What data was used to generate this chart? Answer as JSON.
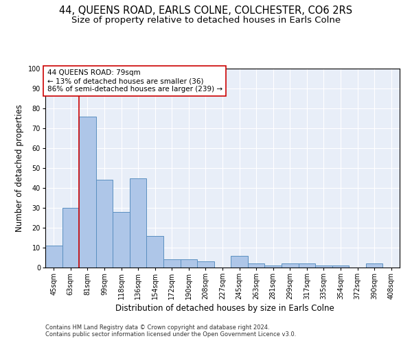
{
  "title1": "44, QUEENS ROAD, EARLS COLNE, COLCHESTER, CO6 2RS",
  "title2": "Size of property relative to detached houses in Earls Colne",
  "xlabel": "Distribution of detached houses by size in Earls Colne",
  "ylabel": "Number of detached properties",
  "categories": [
    "45sqm",
    "63sqm",
    "81sqm",
    "99sqm",
    "118sqm",
    "136sqm",
    "154sqm",
    "172sqm",
    "190sqm",
    "208sqm",
    "227sqm",
    "245sqm",
    "263sqm",
    "281sqm",
    "299sqm",
    "317sqm",
    "335sqm",
    "354sqm",
    "372sqm",
    "390sqm",
    "408sqm"
  ],
  "values": [
    11,
    30,
    76,
    44,
    28,
    45,
    16,
    4,
    4,
    3,
    0,
    6,
    2,
    1,
    2,
    2,
    1,
    1,
    0,
    2,
    0
  ],
  "bar_color": "#aec6e8",
  "bar_edge_color": "#5a8fc0",
  "vline_x": 1.5,
  "vline_color": "#cc0000",
  "annotation_text": "44 QUEENS ROAD: 79sqm\n← 13% of detached houses are smaller (36)\n86% of semi-detached houses are larger (239) →",
  "annotation_box_color": "#ffffff",
  "annotation_box_edge": "#cc0000",
  "ylim": [
    0,
    100
  ],
  "yticks": [
    0,
    10,
    20,
    30,
    40,
    50,
    60,
    70,
    80,
    90,
    100
  ],
  "bg_color": "#e8eef8",
  "footer1": "Contains HM Land Registry data © Crown copyright and database right 2024.",
  "footer2": "Contains public sector information licensed under the Open Government Licence v3.0.",
  "title1_fontsize": 10.5,
  "title2_fontsize": 9.5,
  "tick_fontsize": 7,
  "ylabel_fontsize": 8.5,
  "xlabel_fontsize": 8.5,
  "footer_fontsize": 6.0,
  "annot_fontsize": 7.5
}
